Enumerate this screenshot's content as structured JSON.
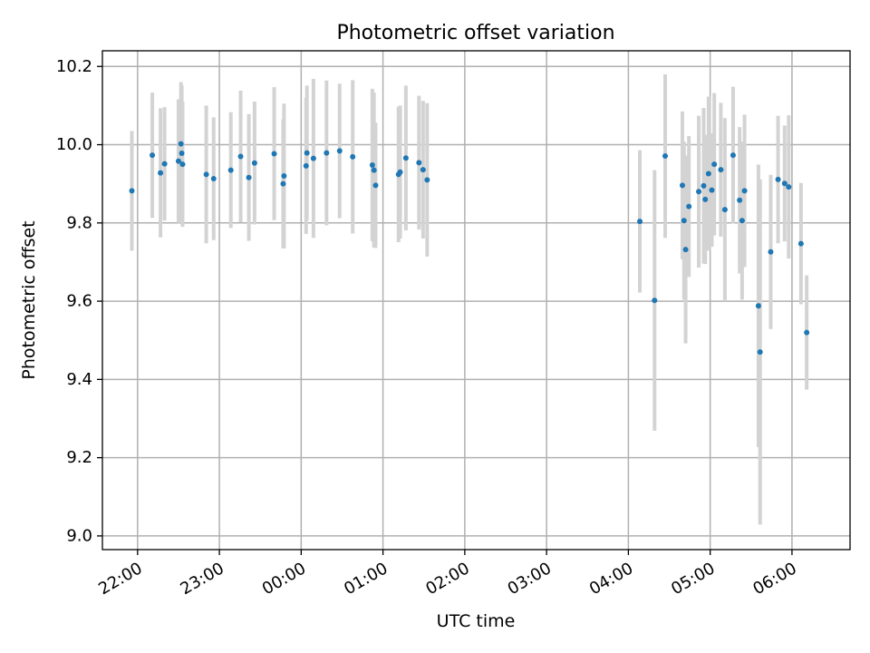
{
  "chart_data": {
    "type": "scatter",
    "title": "Photometric offset variation",
    "xlabel": "UTC time",
    "ylabel": "Photometric offset",
    "x_unit": "hours UTC (values past 24 are after midnight)",
    "xlim": [
      21.57,
      30.71
    ],
    "ylim": [
      8.965,
      10.24
    ],
    "x_ticks": [
      22,
      23,
      24,
      25,
      26,
      27,
      28,
      29,
      30
    ],
    "x_tick_labels": [
      "22:00",
      "23:00",
      "00:00",
      "01:00",
      "02:00",
      "03:00",
      "04:00",
      "05:00",
      "06:00"
    ],
    "y_ticks": [
      9.0,
      9.2,
      9.4,
      9.6,
      9.8,
      10.0,
      10.2
    ],
    "y_tick_labels": [
      "9.0",
      "9.2",
      "9.4",
      "9.6",
      "9.8",
      "10.0",
      "10.2"
    ],
    "grid": true,
    "legend": false,
    "colors": {
      "marker": "#1f77b4",
      "errorbar": "#d3d3d3",
      "grid": "#b0b0b0",
      "frame": "#000000"
    },
    "series": [
      {
        "x": [
          21.93,
          22.18,
          22.28,
          22.33,
          22.5,
          22.53,
          22.54,
          22.55,
          22.84,
          22.93,
          23.14,
          23.26,
          23.36,
          23.43,
          23.67,
          23.78,
          23.79,
          24.06,
          24.07,
          24.15,
          24.31,
          24.47,
          24.63,
          24.87,
          24.89,
          24.91,
          25.19,
          25.21,
          25.28,
          25.44,
          25.49,
          25.54,
          28.14,
          28.32,
          28.45,
          28.66,
          28.68,
          28.7,
          28.74,
          28.86,
          28.92,
          28.94,
          28.98,
          29.02,
          29.05,
          29.13,
          29.18,
          29.28,
          29.36,
          29.39,
          29.42,
          29.59,
          29.61,
          29.74,
          29.83,
          29.91,
          29.96,
          30.11,
          30.18
        ],
        "y": [
          9.882,
          9.973,
          9.928,
          9.951,
          9.958,
          10.002,
          9.978,
          9.95,
          9.924,
          9.913,
          9.935,
          9.97,
          9.916,
          9.953,
          9.977,
          9.9,
          9.92,
          9.946,
          9.979,
          9.965,
          9.979,
          9.984,
          9.969,
          9.948,
          9.935,
          9.896,
          9.924,
          9.93,
          9.966,
          9.954,
          9.936,
          9.91,
          9.804,
          9.602,
          9.971,
          9.896,
          9.806,
          9.732,
          9.842,
          9.88,
          9.895,
          9.86,
          9.926,
          9.884,
          9.95,
          9.936,
          9.834,
          9.973,
          9.858,
          9.806,
          9.882,
          9.588,
          9.47,
          9.726,
          9.911,
          9.901,
          9.892,
          9.747,
          9.52
        ],
        "yerr": [
          0.153,
          0.16,
          0.165,
          0.145,
          0.158,
          0.158,
          0.174,
          0.16,
          0.176,
          0.157,
          0.148,
          0.168,
          0.162,
          0.157,
          0.17,
          0.165,
          0.185,
          0.174,
          0.172,
          0.203,
          0.185,
          0.172,
          0.196,
          0.195,
          0.198,
          0.16,
          0.173,
          0.17,
          0.185,
          0.171,
          0.176,
          0.196,
          0.182,
          0.333,
          0.209,
          0.189,
          0.202,
          0.24,
          0.18,
          0.194,
          0.199,
          0.165,
          0.197,
          0.145,
          0.182,
          0.171,
          0.234,
          0.175,
          0.187,
          0.202,
          0.195,
          0.361,
          0.441,
          0.197,
          0.163,
          0.148,
          0.183,
          0.155,
          0.146
        ]
      }
    ]
  }
}
